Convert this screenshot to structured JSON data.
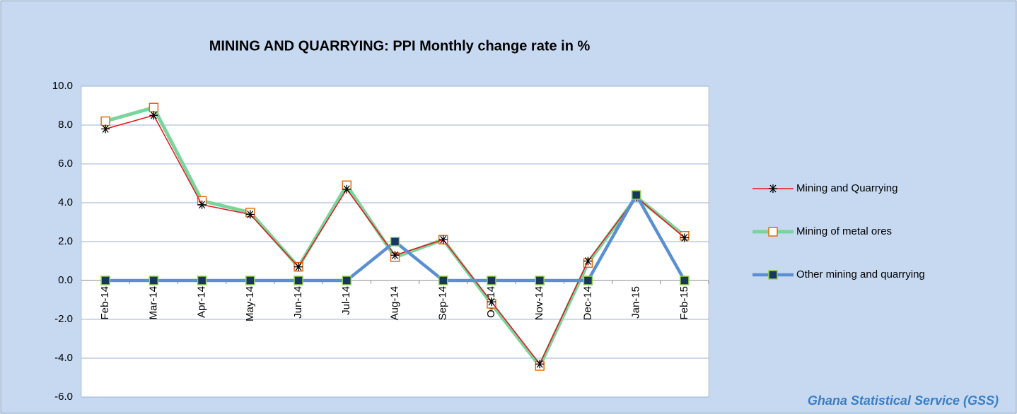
{
  "chart_data": {
    "type": "line",
    "title": "MINING AND QUARRYING:  PPI  Monthly change rate  in %",
    "source": "Ghana Statistical Service (GSS)",
    "categories": [
      "Feb-14",
      "Mar-14",
      "Apr-14",
      "May-14",
      "Jun-14",
      "Jul-14",
      "Aug-14",
      "Sep-14",
      "Oct-14",
      "Nov-14",
      "Dec-14",
      "Jan-15",
      "Feb-15"
    ],
    "series": [
      {
        "name": "Mining and Quarrying",
        "color": "#e8141c",
        "marker": "star",
        "values": [
          7.8,
          8.5,
          3.9,
          3.4,
          0.7,
          4.7,
          1.3,
          2.1,
          -1.1,
          -4.3,
          1.0,
          4.3,
          2.2
        ]
      },
      {
        "name": "Mining of metal ores",
        "color": "#79d59b",
        "marker": "square",
        "values": [
          8.2,
          8.9,
          4.1,
          3.5,
          0.7,
          4.9,
          1.2,
          2.1,
          -1.2,
          -4.4,
          0.9,
          4.3,
          2.3
        ]
      },
      {
        "name": "Other mining and quarrying",
        "color": "#5a8fd2",
        "marker": "square",
        "values": [
          0,
          0,
          0,
          0,
          0,
          0,
          2.0,
          0,
          0,
          0,
          0,
          4.4,
          0
        ]
      }
    ],
    "ylim": [
      -6,
      10
    ],
    "yticks": [
      {
        "value": -6,
        "label": "-6.0"
      },
      {
        "value": -4,
        "label": "-4.0"
      },
      {
        "value": -2,
        "label": "-2.0"
      },
      {
        "value": 0,
        "label": "0.0"
      },
      {
        "value": 2,
        "label": "2.0"
      },
      {
        "value": 4,
        "label": "4.0"
      },
      {
        "value": 6,
        "label": "6.0"
      },
      {
        "value": 8,
        "label": "8.0"
      },
      {
        "value": 10,
        "label": "10.0"
      }
    ],
    "grid": true,
    "legend": "right"
  }
}
